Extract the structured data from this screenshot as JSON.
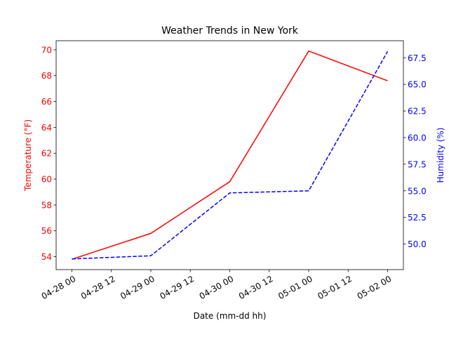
{
  "chart_data": {
    "type": "line",
    "title": "Weather Trends in New York",
    "xlabel": "Date (mm-dd hh)",
    "ylabel_left": "Temperature (°F)",
    "ylabel_right": "Humidity (%)",
    "x": [
      "2024-04-28 00:00",
      "2024-04-29 00:00",
      "2024-04-30 00:00",
      "2024-05-01 00:00",
      "2024-05-02 00:00"
    ],
    "x_ticks": [
      "04-28 00",
      "04-28 12",
      "04-29 00",
      "04-29 12",
      "04-30 00",
      "04-30 12",
      "05-01 00",
      "05-01 12",
      "05-02 00"
    ],
    "xlim": [
      "2024-04-27 19:12",
      "2024-05-02 04:48"
    ],
    "series": [
      {
        "axis": "left",
        "color": "#ff0000",
        "style": "solid",
        "values": [
          53.8,
          55.8,
          59.8,
          69.9,
          67.6
        ]
      },
      {
        "axis": "right",
        "color": "#0000ff",
        "style": "dashed",
        "values": [
          48.6,
          48.9,
          54.8,
          55.0,
          68.1
        ]
      }
    ],
    "ylim_left": [
      53.0,
      70.7
    ],
    "yticks_left": [
      "54",
      "56",
      "58",
      "60",
      "62",
      "64",
      "66",
      "68",
      "70"
    ],
    "ylim_right": [
      47.6,
      69.1
    ],
    "yticks_right": [
      "50.0",
      "52.5",
      "55.0",
      "57.5",
      "60.0",
      "62.5",
      "65.0",
      "67.5"
    ],
    "grid": false,
    "legend": "none"
  }
}
